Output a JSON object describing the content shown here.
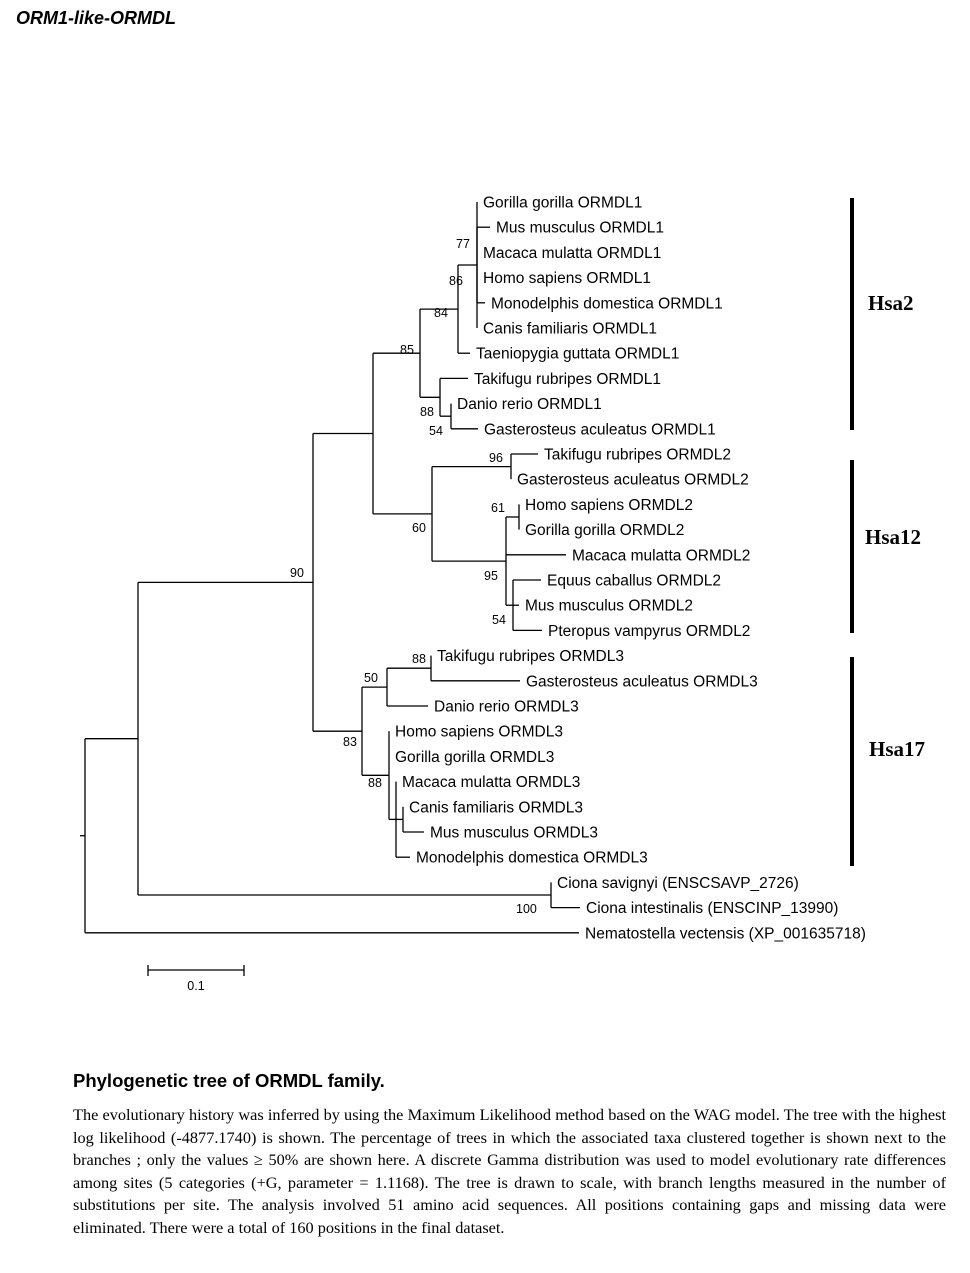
{
  "page_title": "ORM1-like-ORMDL",
  "tree": {
    "leaves": [
      "Gorilla gorilla ORMDL1",
      "Mus musculus ORMDL1",
      "Macaca mulatta ORMDL1",
      "Homo sapiens ORMDL1",
      "Monodelphis domestica ORMDL1",
      "Canis familiaris ORMDL1",
      "Taeniopygia guttata ORMDL1",
      "Takifugu rubripes ORMDL1",
      "Danio rerio ORMDL1",
      "Gasterosteus aculeatus ORMDL1",
      "Takifugu rubripes ORMDL2",
      "Gasterosteus aculeatus ORMDL2",
      "Homo sapiens ORMDL2",
      "Gorilla gorilla ORMDL2",
      "Macaca mulatta ORMDL2",
      "Equus caballus ORMDL2",
      "Mus musculus ORMDL2",
      "Pteropus vampyrus ORMDL2",
      "Takifugu rubripes ORMDL3",
      "Gasterosteus aculeatus ORMDL3",
      "Danio rerio ORMDL3",
      "Homo sapiens ORMDL3",
      "Gorilla gorilla ORMDL3",
      "Macaca mulatta ORMDL3",
      "Canis familiaris ORMDL3",
      "Mus musculus ORMDL3",
      "Monodelphis domestica ORMDL3",
      "Ciona savignyi (ENSCSAVP_2726)",
      "Ciona intestinalis (ENSCINP_13990)",
      "Nematostella vectensis (XP_001635718)"
    ],
    "bootstrap": [
      "77",
      "86",
      "84",
      "85",
      "88",
      "54",
      "96",
      "61",
      "60",
      "95",
      "54",
      "90",
      "88",
      "50",
      "83",
      "88",
      "100"
    ],
    "groups": [
      "Hsa2",
      "Hsa12",
      "Hsa17"
    ],
    "scale_label": "0.1"
  },
  "caption": {
    "title": "Phylogenetic tree of ORMDL family.",
    "body": "The evolutionary history was inferred by using the Maximum Likelihood method based on the WAG model. The tree with the highest log likelihood (-4877.1740) is shown. The percentage of trees in which the associated taxa clustered together is shown next to the branches ; only the values ≥ 50% are shown here. A discrete Gamma distribution was used to model evolutionary rate differences among sites (5 categories (+G, parameter = 1.1168). The tree is drawn to scale, with branch lengths measured in the number of substitutions per site. The analysis involved 51 amino acid sequences. All positions containing gaps and missing data were eliminated. There were a total of 160 positions in the final dataset."
  }
}
